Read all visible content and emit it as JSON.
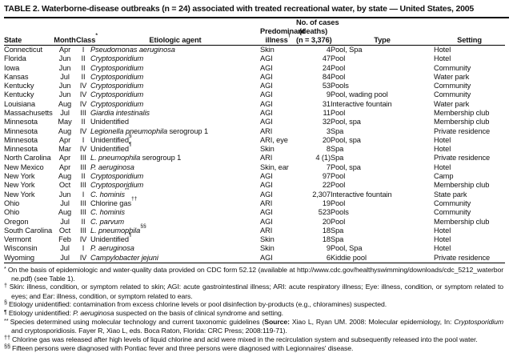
{
  "title": "TABLE 2. Waterborne-disease outbreaks (n = 24) associated with treated recreational water, by state — United States, 2005",
  "table": {
    "headers": {
      "state": "State",
      "month": "Month",
      "class_label": "Class",
      "class_sup": "*",
      "agent": "Etiologic agent",
      "illness_line1": "Predominant",
      "illness_line2": "illness",
      "illness_sup": "†",
      "cases_lines": [
        "No. of cases",
        "(deaths)",
        "(n = 3,376)"
      ],
      "type": "Type",
      "setting": "Setting"
    },
    "rows": [
      {
        "state": "Connecticut",
        "month": "Apr",
        "class": "I",
        "agent": {
          "i": "Pseudomonas aeruginosa",
          "r": "",
          "s": ""
        },
        "illness": "Skin",
        "cases": "4",
        "type": "Pool, Spa",
        "setting": "Hotel"
      },
      {
        "state": "Florida",
        "month": "Jun",
        "class": "II",
        "agent": {
          "i": "Cryptosporidium",
          "r": "",
          "s": ""
        },
        "illness": "AGI",
        "cases": "47",
        "type": "Pool",
        "setting": "Hotel"
      },
      {
        "state": "Iowa",
        "month": "Jun",
        "class": "II",
        "agent": {
          "i": "Cryptosporidium",
          "r": "",
          "s": ""
        },
        "illness": "AGI",
        "cases": "24",
        "type": "Pool",
        "setting": "Community"
      },
      {
        "state": "Kansas",
        "month": "Jul",
        "class": "II",
        "agent": {
          "i": "Cryptosporidium",
          "r": "",
          "s": ""
        },
        "illness": "AGI",
        "cases": "84",
        "type": "Pool",
        "setting": "Water park"
      },
      {
        "state": "Kentucky",
        "month": "Jun",
        "class": "IV",
        "agent": {
          "i": "Cryptosporidium",
          "r": "",
          "s": ""
        },
        "illness": "AGI",
        "cases": "53",
        "type": "Pools",
        "setting": "Community"
      },
      {
        "state": "Kentucky",
        "month": "Jun",
        "class": "IV",
        "agent": {
          "i": "Cryptosporidium",
          "r": "",
          "s": ""
        },
        "illness": "AGI",
        "cases": "9",
        "type": "Pool, wading pool",
        "setting": "Community"
      },
      {
        "state": "Louisiana",
        "month": "Aug",
        "class": "IV",
        "agent": {
          "i": "Cryptosporidium",
          "r": "",
          "s": ""
        },
        "illness": "AGI",
        "cases": "31",
        "type": "Interactive fountain",
        "setting": "Water park"
      },
      {
        "state": "Massachusetts",
        "month": "Jul",
        "class": "III",
        "agent": {
          "i": "Giardia intestinalis",
          "r": "",
          "s": ""
        },
        "illness": "AGI",
        "cases": "11",
        "type": "Pool",
        "setting": "Membership club"
      },
      {
        "state": "Minnesota",
        "month": "May",
        "class": "II",
        "agent": {
          "i": "",
          "r": "Unidentified",
          "s": ""
        },
        "illness": "AGI",
        "cases": "32",
        "type": "Pool, spa",
        "setting": "Membership club"
      },
      {
        "state": "Minnesota",
        "month": "Aug",
        "class": "IV",
        "agent": {
          "i": "Legionella pneumophila",
          "r": " serogroup 1",
          "s": ""
        },
        "illness": "ARI",
        "cases": "3",
        "type": "Spa",
        "setting": "Private residence"
      },
      {
        "state": "Minnesota",
        "month": "Apr",
        "class": "I",
        "agent": {
          "i": "",
          "r": "Unidentified",
          "s": "§"
        },
        "illness": "ARI, eye",
        "cases": "20",
        "type": "Pool, spa",
        "setting": "Hotel"
      },
      {
        "state": "Minnesota",
        "month": "Mar",
        "class": "IV",
        "agent": {
          "i": "",
          "r": "Unidentified",
          "s": "¶"
        },
        "illness": "Skin",
        "cases": "8",
        "type": "Spa",
        "setting": "Hotel"
      },
      {
        "state": "North Carolina",
        "month": "Apr",
        "class": "III",
        "agent": {
          "i": "L. pneumophila",
          "r": " serogroup 1",
          "s": ""
        },
        "illness": "ARI",
        "cases": "4 (1)",
        "type": "Spa",
        "setting": "Private residence"
      },
      {
        "state": "New Mexico",
        "month": "Apr",
        "class": "III",
        "agent": {
          "i": "P. aeruginosa",
          "r": "",
          "s": ""
        },
        "illness": "Skin, ear",
        "cases": "7",
        "type": "Pool, spa",
        "setting": "Hotel"
      },
      {
        "state": "New York",
        "month": "Aug",
        "class": "II",
        "agent": {
          "i": "Cryptosporidium",
          "r": "",
          "s": ""
        },
        "illness": "AGI",
        "cases": "97",
        "type": "Pool",
        "setting": "Camp"
      },
      {
        "state": "New York",
        "month": "Oct",
        "class": "III",
        "agent": {
          "i": "Cryptosporidium",
          "r": "",
          "s": ""
        },
        "illness": "AGI",
        "cases": "22",
        "type": "Pool",
        "setting": "Membership club"
      },
      {
        "state": "New York",
        "month": "Jun",
        "class": "I",
        "agent": {
          "i": "C. hominis",
          "r": "",
          "s": "**"
        },
        "illness": "AGI",
        "cases": "2,307",
        "type": "Interactive fountain",
        "setting": "State park"
      },
      {
        "state": "Ohio",
        "month": "Jul",
        "class": "III",
        "agent": {
          "i": "",
          "r": "Chlorine gas",
          "s": "††"
        },
        "illness": "ARI",
        "cases": "19",
        "type": "Pool",
        "setting": "Community"
      },
      {
        "state": "Ohio",
        "month": "Aug",
        "class": "III",
        "agent": {
          "i": "C. hominis",
          "r": "",
          "s": ""
        },
        "illness": "AGI",
        "cases": "523",
        "type": "Pools",
        "setting": "Community"
      },
      {
        "state": "Oregon",
        "month": "Jul",
        "class": "II",
        "agent": {
          "i": "C. parvum",
          "r": "",
          "s": ""
        },
        "illness": "AGI",
        "cases": "20",
        "type": "Pool",
        "setting": "Membership club"
      },
      {
        "state": "South Carolina",
        "month": "Oct",
        "class": "III",
        "agent": {
          "i": "L. pneumophila",
          "r": "",
          "s": "§§"
        },
        "illness": "ARI",
        "cases": "18",
        "type": "Spa",
        "setting": "Hotel"
      },
      {
        "state": "Vermont",
        "month": "Feb",
        "class": "IV",
        "agent": {
          "i": "",
          "r": "Unidentified",
          "s": "¶"
        },
        "illness": "Skin",
        "cases": "18",
        "type": "Spa",
        "setting": "Hotel"
      },
      {
        "state": "Wisconsin",
        "month": "Jul",
        "class": "I",
        "agent": {
          "i": "P. aeruginosa",
          "r": "",
          "s": ""
        },
        "illness": "Skin",
        "cases": "9",
        "type": "Pool, Spa",
        "setting": "Hotel"
      },
      {
        "state": "Wyoming",
        "month": "Jul",
        "class": "IV",
        "agent": {
          "i": "Campylobacter jejuni",
          "r": "",
          "s": ""
        },
        "illness": "AGI",
        "cases": "6",
        "type": "Kiddie pool",
        "setting": "Private residence"
      }
    ]
  },
  "footnotes": [
    {
      "m": "*",
      "seg": [
        {
          "t": "On the basis of epidemiologic and water-quality data provided on CDC form 52.12 (available at ",
          "s": ""
        },
        {
          "t": "http://www.cdc.gov/healthyswimming/downloads/cdc_5212_waterborne.pdf)",
          "s": "u"
        },
        {
          "t": " (see Table 1).",
          "s": ""
        }
      ]
    },
    {
      "m": "†",
      "seg": [
        {
          "t": "Skin: illness, condition, or symptom related to skin; AGI: acute gastrointestinal illness; ARI: acute respiratory illness; Eye: illness, condition, or symptom related to eyes; and Ear: illness, condition, or symptom related to ears.",
          "s": ""
        }
      ]
    },
    {
      "m": "§",
      "seg": [
        {
          "t": "Etiology unidentified: contamination from excess chlorine levels or pool disinfection by-products (e.g., chloramines) suspected.",
          "s": ""
        }
      ]
    },
    {
      "m": "¶",
      "seg": [
        {
          "t": "Etiology unidentified: ",
          "s": ""
        },
        {
          "t": "P. aeruginosa",
          "s": "i"
        },
        {
          "t": " suspected on the basis of clinical syndrome and setting.",
          "s": ""
        }
      ]
    },
    {
      "m": "**",
      "seg": [
        {
          "t": "Species determined using molecular technology and current taxonomic guidelines (",
          "s": ""
        },
        {
          "t": "Source:",
          "s": "b"
        },
        {
          "t": " Xiao L, Ryan UM. 2008: Molecular epidemiology, In: ",
          "s": ""
        },
        {
          "t": "Cryptosporidium",
          "s": "i"
        },
        {
          "t": " and cryptosporidiosis. Fayer R, Xiao L, eds. Boca Raton, Florida: CRC Press; 2008:119-71).",
          "s": ""
        }
      ]
    },
    {
      "m": "††",
      "seg": [
        {
          "t": "Chlorine gas was released after high levels of liquid chlorine and acid were mixed in the recirculation system and subsequently released into the pool water.",
          "s": ""
        }
      ]
    },
    {
      "m": "§§",
      "seg": [
        {
          "t": "Fifteen persons were diagnosed with Pontiac fever and three persons were diagnosed with Legionnaires' disease.",
          "s": ""
        }
      ]
    }
  ]
}
